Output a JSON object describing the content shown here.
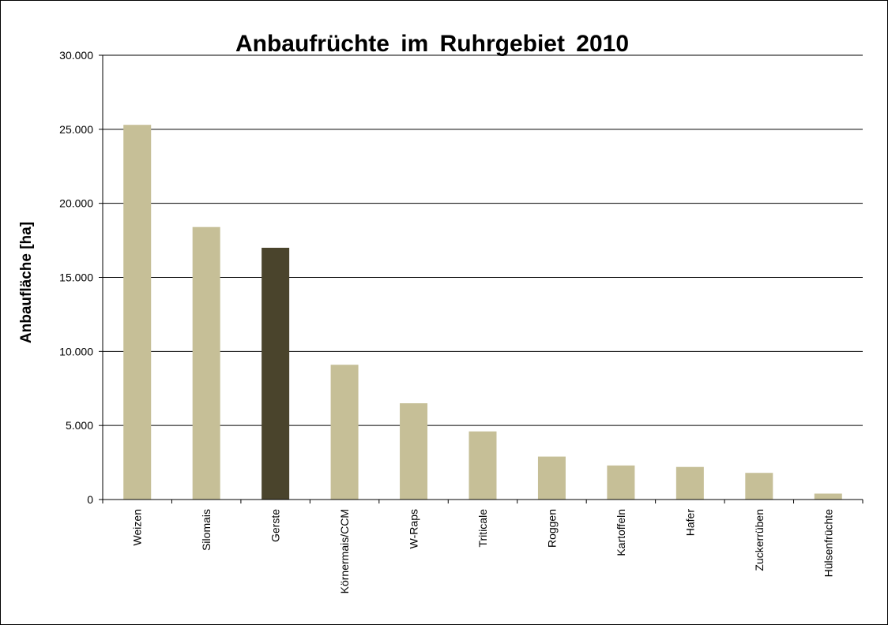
{
  "chart_data": {
    "type": "bar",
    "title": "Anbaufrüchte  im Ruhrgebiet 2010",
    "xlabel": "",
    "ylabel": "Anbaufläche [ha]",
    "ylim": [
      0,
      30000
    ],
    "yticks": [
      0,
      5000,
      10000,
      15000,
      20000,
      25000,
      30000
    ],
    "ytick_labels": [
      "0",
      "5.000",
      "10.000",
      "15.000",
      "20.000",
      "25.000",
      "30.000"
    ],
    "grid": true,
    "categories": [
      "Weizen",
      "Silomais",
      "Gerste",
      "Körnermais/CCM",
      "W-Raps",
      "Triticale",
      "Roggen",
      "Kartoffeln",
      "Hafer",
      "Zuckerrüben",
      "Hülsenfrüchte"
    ],
    "values": [
      25300,
      18400,
      17000,
      9100,
      6500,
      4600,
      2900,
      2300,
      2200,
      1800,
      400
    ],
    "colors": {
      "default_bar": "#c6bf97",
      "highlight_bar": "#4a442c",
      "highlight_category": "Gerste",
      "grid": "#000000",
      "axis": "#000000"
    }
  }
}
